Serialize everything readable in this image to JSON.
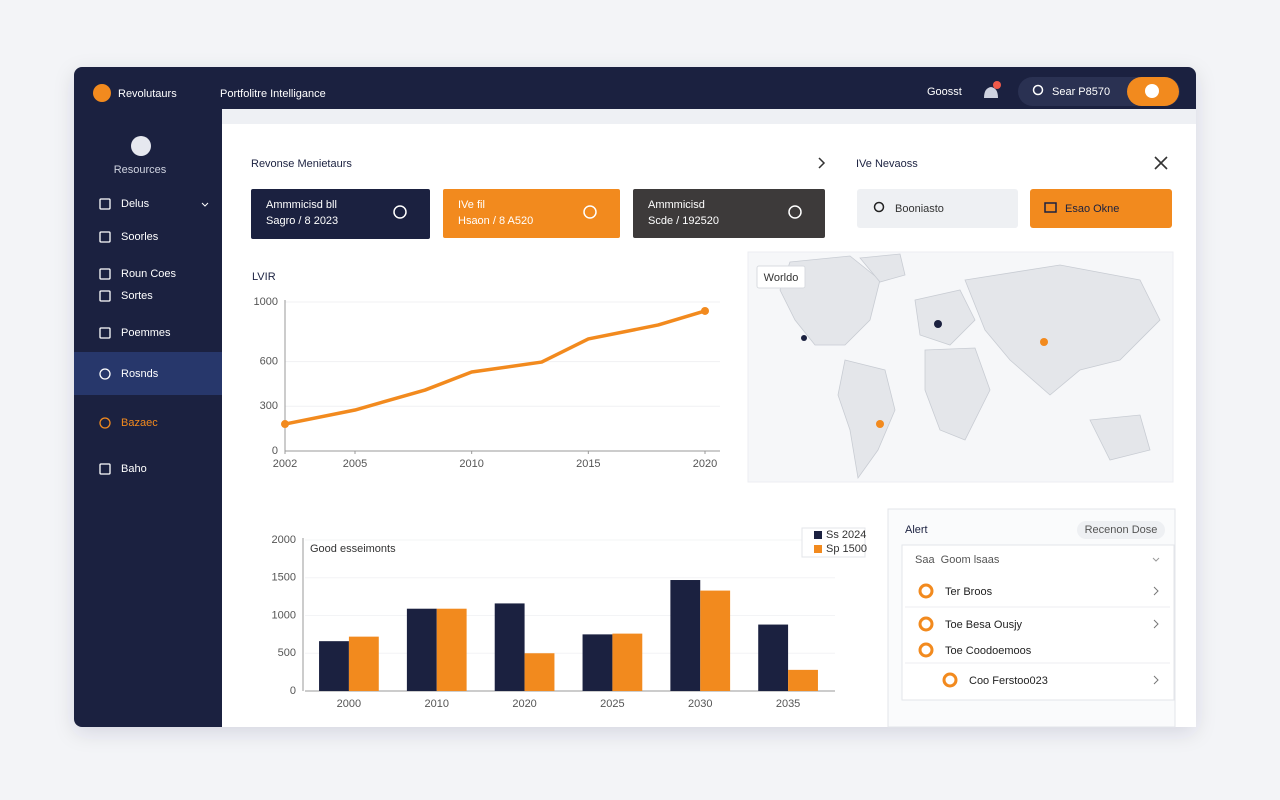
{
  "app": {
    "brand": "Revolutaurs",
    "title": "Portfolitre Intelligance",
    "user": "Goosst",
    "search": "Sear P8570"
  },
  "sidebar": {
    "profile": "Resources",
    "items": [
      "Delus",
      "Soorles",
      "Roun Coes",
      "Sortes",
      "Poemmes",
      "Rosnds",
      "Bazaec",
      "Baho"
    ]
  },
  "main": {
    "title": "Revonse Menietaurs",
    "kpis": [
      {
        "label": "Ammmicisd bll",
        "value": "Sagro / 8 2023"
      },
      {
        "label": "IVe fil",
        "value": "Hsaon / 8 A520"
      },
      {
        "label": "Ammmicisd",
        "value": "Scde / 192520"
      }
    ]
  },
  "panel": {
    "title": "IVe Nevaoss",
    "search": "Booniasto",
    "button": "Esao Okne",
    "map_label": "Worldo"
  },
  "line_chart": {
    "type": "line",
    "title": "LVIR",
    "x": [
      2002,
      2005,
      2008,
      2010,
      2013,
      2015,
      2018,
      2020
    ],
    "values": [
      181,
      275,
      409,
      530,
      597,
      752,
      846,
      940
    ],
    "color": "#f28a1e",
    "xlim": [
      2002,
      2020
    ],
    "xticks": [
      2002,
      2005,
      2010,
      2015,
      2020
    ],
    "ylim": [
      0,
      1000
    ],
    "yticks": [
      0,
      300,
      600,
      1000
    ]
  },
  "bar_chart": {
    "type": "bar",
    "title": "Good esseimonts",
    "categories": [
      "2000",
      "2010",
      "2020",
      "2025",
      "2030",
      "2035"
    ],
    "series": [
      {
        "name": "Ss 2024",
        "color": "#1b2140",
        "values": [
          660,
          1090,
          1160,
          750,
          1470,
          880
        ]
      },
      {
        "name": "Sp 1500",
        "color": "#f28a1e",
        "values": [
          720,
          1090,
          500,
          760,
          1330,
          280
        ]
      }
    ],
    "ylim": [
      0,
      2000
    ],
    "yticks": [
      0,
      500,
      1000,
      1500,
      2000
    ]
  },
  "alerts": {
    "title": "Alert",
    "filter": "Recenon Dose",
    "header": "Saa  Goom lsaas",
    "items": [
      "Ter Broos",
      "Toe Besa Ousjy",
      "Toe Coodoemoos",
      "Coo Ferstoo023"
    ]
  }
}
